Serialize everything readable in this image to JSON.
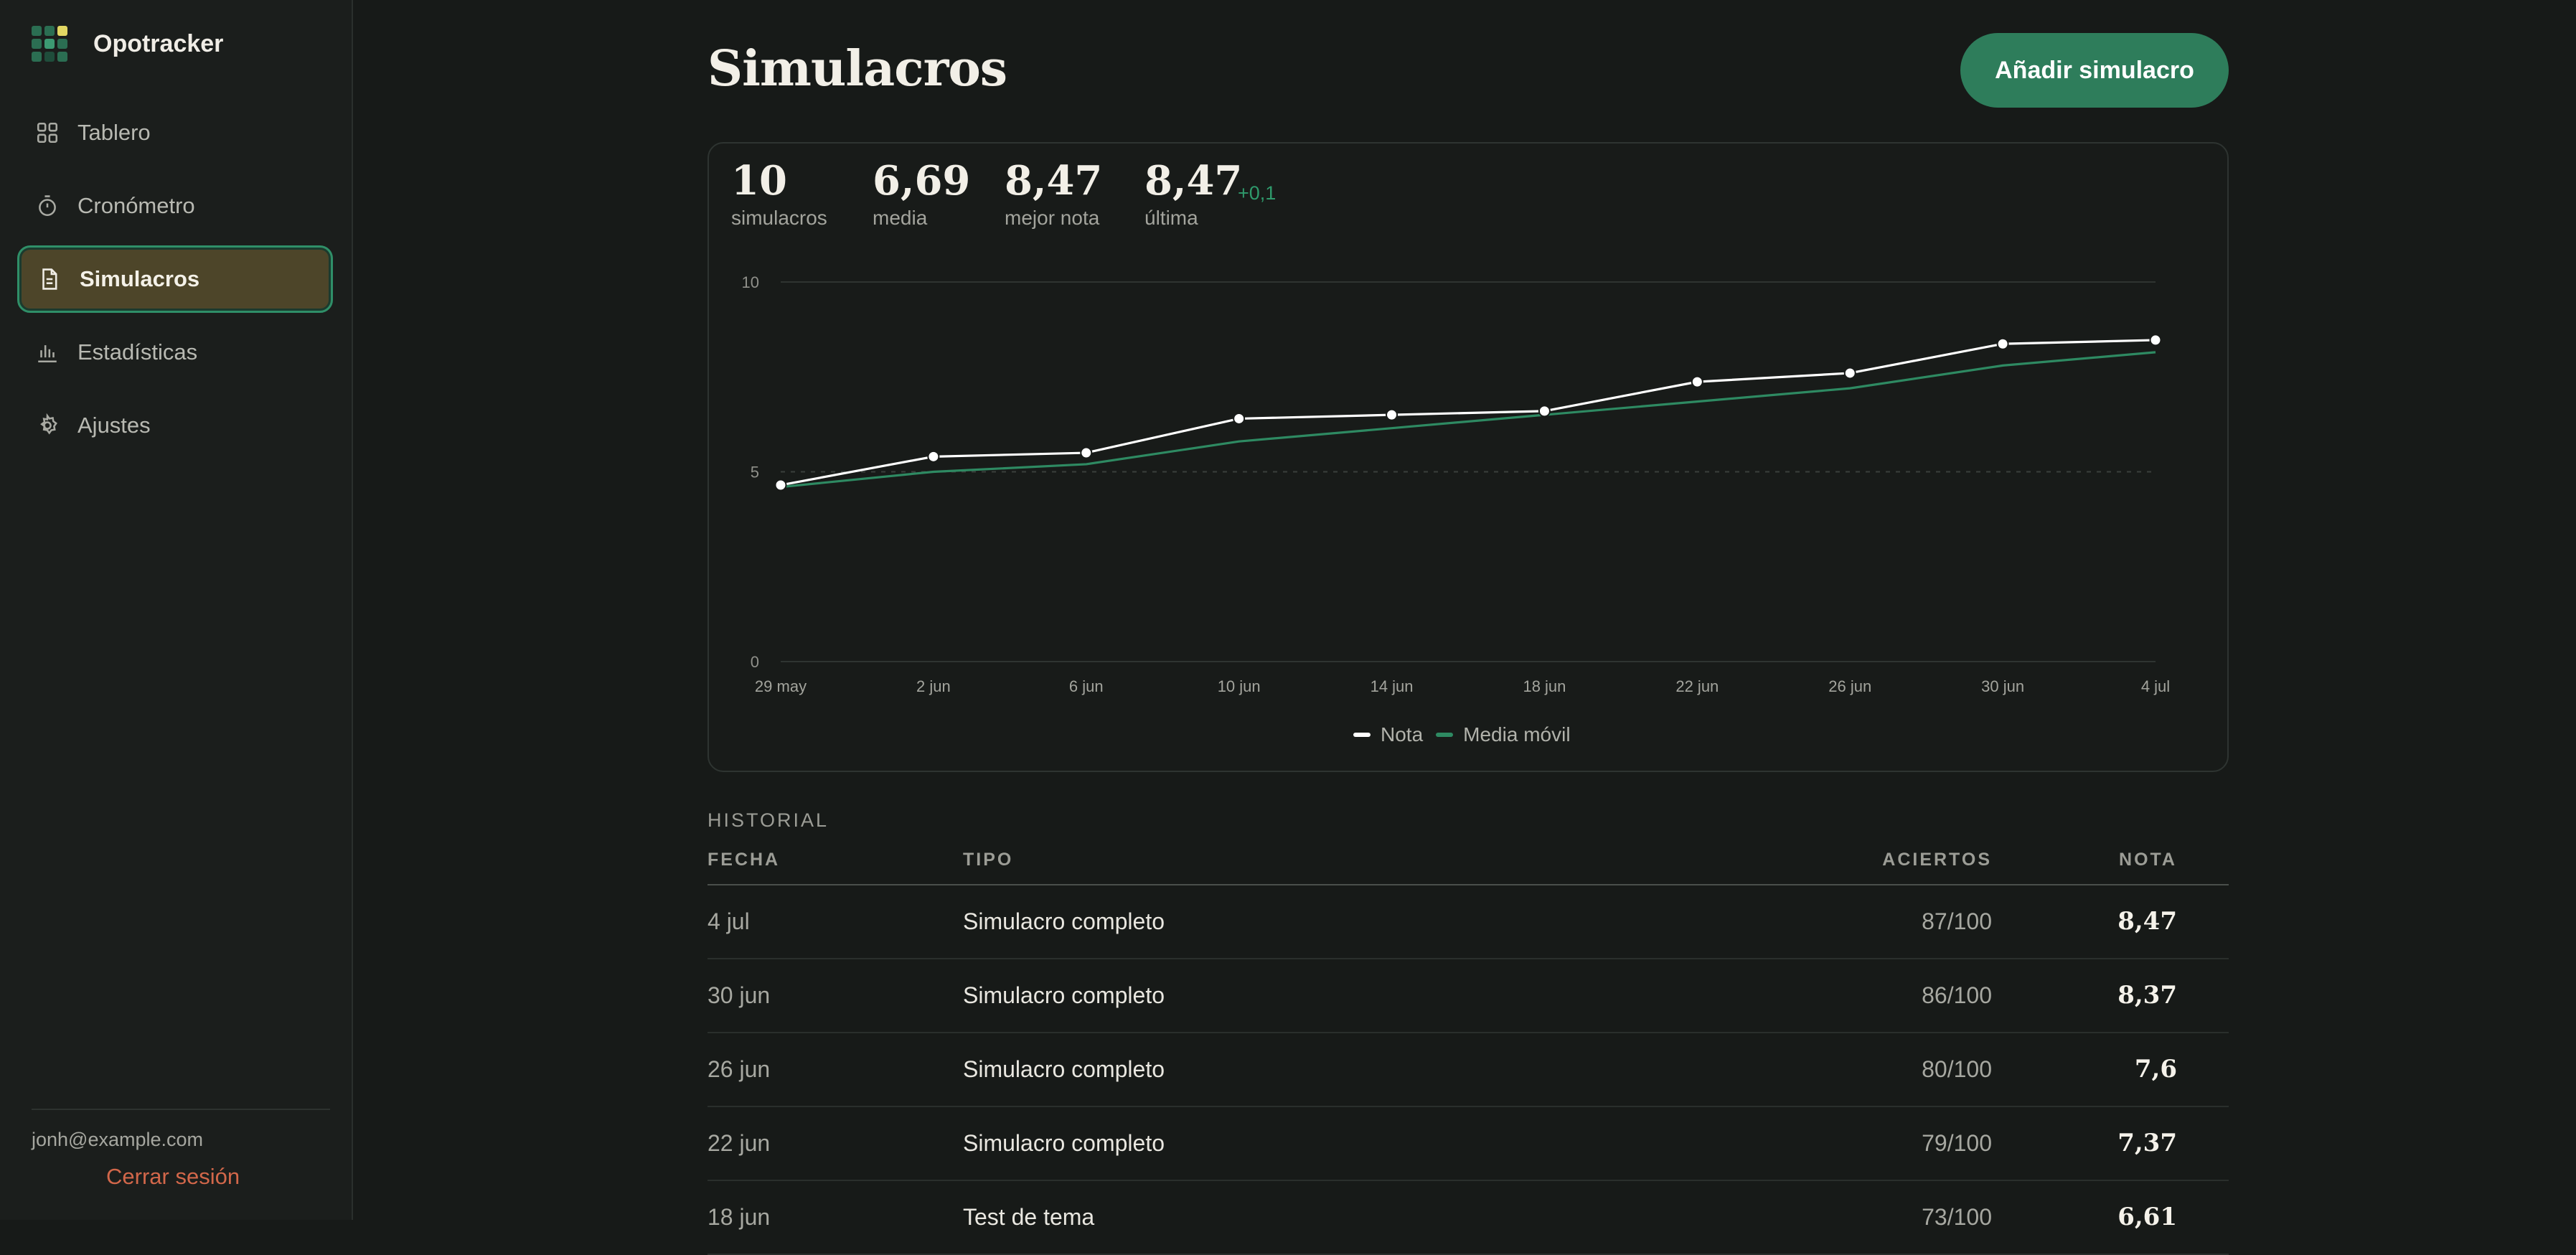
{
  "app": {
    "name": "Opotracker"
  },
  "sidebar": {
    "items": [
      {
        "label": "Tablero",
        "icon": "grid-icon"
      },
      {
        "label": "Cronómetro",
        "icon": "stopwatch-icon"
      },
      {
        "label": "Simulacros",
        "icon": "document-icon",
        "active": true
      },
      {
        "label": "Estadísticas",
        "icon": "bar-chart-icon"
      },
      {
        "label": "Ajustes",
        "icon": "gear-icon"
      }
    ],
    "user_email": "jonh@example.com",
    "logout_label": "Cerrar sesión"
  },
  "header": {
    "title": "Simulacros",
    "add_button": "Añadir simulacro"
  },
  "stats": [
    {
      "value": "10",
      "label": "simulacros"
    },
    {
      "value": "6,69",
      "label": "media"
    },
    {
      "value": "8,47",
      "label": "mejor nota"
    },
    {
      "value": "8,47",
      "label": "última",
      "delta": "+0,1"
    }
  ],
  "colors": {
    "accent": "#2e7d5b",
    "nota_line": "#ffffff",
    "media_line": "#2e8a62",
    "logout": "#d2674a"
  },
  "chart_data": {
    "type": "line",
    "x": [
      "29 may",
      "2 jun",
      "6 jun",
      "10 jun",
      "14 jun",
      "18 jun",
      "22 jun",
      "26 jun",
      "30 jun",
      "4 jul"
    ],
    "y_ticks": [
      "0",
      "5",
      "10"
    ],
    "ylim": [
      0,
      10
    ],
    "series": [
      {
        "name": "Nota",
        "values": [
          4.65,
          5.4,
          5.5,
          6.4,
          6.5,
          6.6,
          7.37,
          7.6,
          8.37,
          8.47
        ]
      },
      {
        "name": "Media móvil",
        "values": [
          4.6,
          5.0,
          5.2,
          5.8,
          6.15,
          6.5,
          6.85,
          7.2,
          7.8,
          8.15
        ]
      }
    ],
    "grid": true,
    "legend": "bottom-center"
  },
  "history": {
    "title": "HISTORIAL",
    "columns": {
      "fecha": "FECHA",
      "tipo": "TIPO",
      "aciertos": "ACIERTOS",
      "nota": "NOTA"
    },
    "rows": [
      {
        "fecha": "4 jul",
        "tipo": "Simulacro completo",
        "aciertos": "87/100",
        "nota": "8,47"
      },
      {
        "fecha": "30 jun",
        "tipo": "Simulacro completo",
        "aciertos": "86/100",
        "nota": "8,37"
      },
      {
        "fecha": "26 jun",
        "tipo": "Simulacro completo",
        "aciertos": "80/100",
        "nota": "7,6"
      },
      {
        "fecha": "22 jun",
        "tipo": "Simulacro completo",
        "aciertos": "79/100",
        "nota": "7,37"
      },
      {
        "fecha": "18 jun",
        "tipo": "Test de tema",
        "aciertos": "73/100",
        "nota": "6,61"
      }
    ]
  }
}
